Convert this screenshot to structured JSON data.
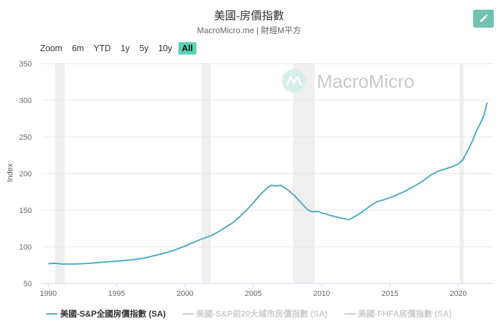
{
  "header": {
    "title": "美國-房價指數",
    "subtitle": "MacroMicro.me | 財經M平方"
  },
  "toolbar": {
    "zoom_label": "Zoom",
    "ranges": [
      "6m",
      "YTD",
      "1y",
      "5y",
      "10y",
      "All"
    ],
    "active_range": "All",
    "edit_icon": "pencil-icon"
  },
  "watermark": {
    "text": "MacroMicro",
    "icon": "macromicro-logo-icon"
  },
  "colors": {
    "line": "#4aabc8",
    "recession": "#efefef",
    "accent": "#5ed1b8",
    "legend_off": "#cccccc"
  },
  "chart_data": {
    "type": "line",
    "ylabel": "Index",
    "xlabel": "",
    "xlim": [
      1989.5,
      2022.5
    ],
    "ylim": [
      50,
      350
    ],
    "x_ticks": [
      1990,
      1995,
      2000,
      2005,
      2010,
      2015,
      2020
    ],
    "y_ticks": [
      50,
      100,
      150,
      200,
      250,
      300,
      350
    ],
    "grid": "horizontal",
    "recessions": [
      [
        1990.5,
        1991.2
      ],
      [
        2001.2,
        2001.9
      ],
      [
        2007.9,
        2009.5
      ],
      [
        2020.1,
        2020.4
      ]
    ],
    "series": [
      {
        "name": "美國-S&P全國房價指數 (SA)",
        "visible": true,
        "x": [
          1990,
          1990.5,
          1991,
          1991.5,
          1992,
          1992.5,
          1993,
          1994,
          1995,
          1996,
          1997,
          1998,
          1999,
          2000,
          2001,
          2002,
          2002.5,
          2003,
          2003.5,
          2004,
          2004.5,
          2005,
          2005.5,
          2006,
          2006.3,
          2006.6,
          2007,
          2007.5,
          2008,
          2008.5,
          2009,
          2009.3,
          2009.5,
          2009.8,
          2010,
          2010.3,
          2010.6,
          2011,
          2011.5,
          2012,
          2012.5,
          2013,
          2013.5,
          2014,
          2014.5,
          2015,
          2015.5,
          2016,
          2016.5,
          2017,
          2017.5,
          2018,
          2018.5,
          2019,
          2019.5,
          2020,
          2020.3,
          2020.6,
          2021,
          2021.3,
          2021.6,
          2021.9,
          2022.1
        ],
        "values": [
          77,
          77.5,
          76.5,
          76.5,
          76.5,
          77,
          77.5,
          79,
          80.5,
          82,
          84.5,
          89,
          94,
          101,
          109,
          116,
          121,
          127,
          133,
          141,
          150,
          160,
          171,
          180,
          184,
          183,
          184,
          178,
          170,
          160,
          150,
          148,
          148,
          148,
          146,
          145,
          143,
          141,
          139,
          137,
          142,
          148,
          155,
          161,
          164,
          167,
          171,
          175,
          180,
          185,
          191,
          198,
          203,
          206,
          209,
          213,
          218,
          228,
          243,
          257,
          268,
          280,
          297
        ]
      },
      {
        "name": "美國-S&P前20大城市房價指數 (SA)",
        "visible": false
      },
      {
        "name": "美國-FHFA房價指數 (SA)",
        "visible": false
      }
    ]
  }
}
